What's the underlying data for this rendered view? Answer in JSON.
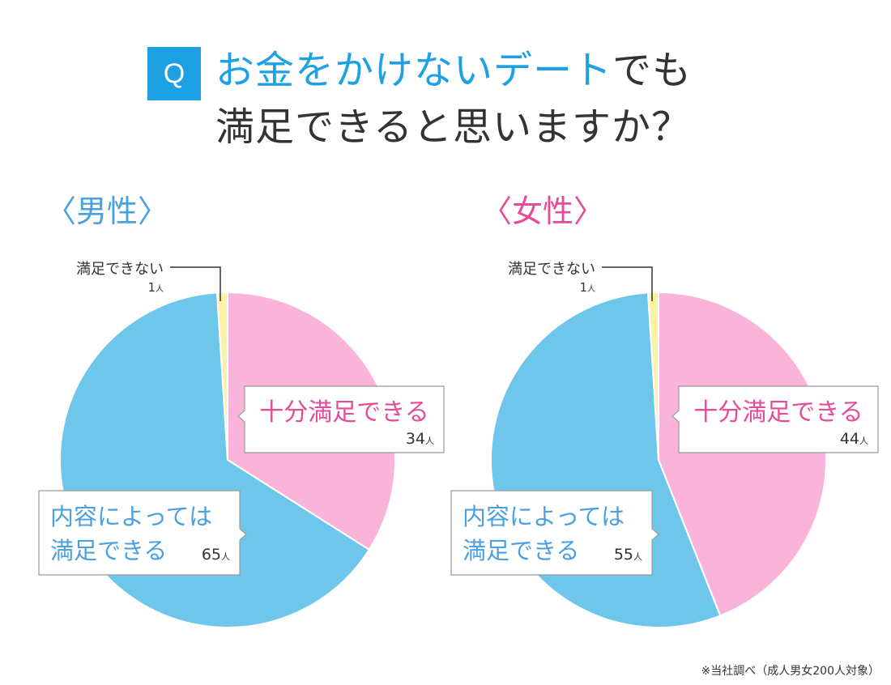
{
  "question": {
    "badge": "Q",
    "title_highlight": "お金をかけないデート",
    "title_rest": "でも",
    "title_line2": "満足できると思いますか？"
  },
  "colors": {
    "accent": "#1da1e3",
    "pink_text": "#e54c98",
    "blue_text": "#4aa0e0",
    "pink_slice": "#fbb4d9",
    "blue_slice": "#6ec6ea",
    "yellow_slice": "#fbf2a5",
    "leader": "#333333"
  },
  "footnote": "※当社調べ（成人男女200人対象）",
  "chart_data": [
    {
      "type": "pie",
      "title": "〈男性〉",
      "unit": "人",
      "slices": [
        {
          "label": "十分満足できる",
          "value": 34,
          "color": "#fbb4d9",
          "label_color": "#e54c98"
        },
        {
          "label_lines": [
            "内容によっては",
            "満足できる"
          ],
          "value": 65,
          "color": "#6ec6ea",
          "label_color": "#4aa0e0"
        },
        {
          "label": "満足できない",
          "value": 1,
          "color": "#fbf2a5",
          "label_color": "#333333"
        }
      ]
    },
    {
      "type": "pie",
      "title": "〈女性〉",
      "unit": "人",
      "slices": [
        {
          "label": "十分満足できる",
          "value": 44,
          "color": "#fbb4d9",
          "label_color": "#e54c98"
        },
        {
          "label_lines": [
            "内容によっては",
            "満足できる"
          ],
          "value": 55,
          "color": "#6ec6ea",
          "label_color": "#4aa0e0"
        },
        {
          "label": "満足できない",
          "value": 1,
          "color": "#fbf2a5",
          "label_color": "#333333"
        }
      ]
    }
  ]
}
